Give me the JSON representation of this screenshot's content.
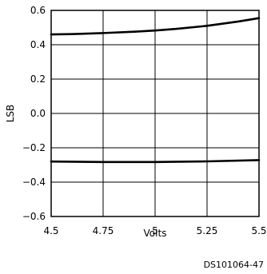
{
  "chart_data": {
    "type": "line",
    "title": "",
    "xlabel": "Volts",
    "ylabel": "LSB",
    "xlim": [
      4.5,
      5.5
    ],
    "ylim": [
      -0.6,
      0.6
    ],
    "x_ticks": [
      "4.5",
      "4.75",
      "5",
      "5.25",
      "5.5"
    ],
    "y_ticks": [
      "0.6",
      "0.4",
      "0.2",
      "0.0",
      "−0.2",
      "−0.4",
      "−0.6"
    ],
    "grid": true,
    "series": [
      {
        "x": [
          4.5,
          4.6,
          4.75,
          4.9,
          5.0,
          5.1,
          5.25,
          5.4,
          5.5
        ],
        "values": [
          0.46,
          0.462,
          0.468,
          0.476,
          0.483,
          0.492,
          0.51,
          0.535,
          0.555
        ]
      },
      {
        "x": [
          4.5,
          4.75,
          5.0,
          5.25,
          5.5
        ],
        "values": [
          -0.28,
          -0.283,
          -0.283,
          -0.279,
          -0.272
        ]
      }
    ],
    "line_color": "#000000"
  },
  "figure_code": "DS101064-47"
}
